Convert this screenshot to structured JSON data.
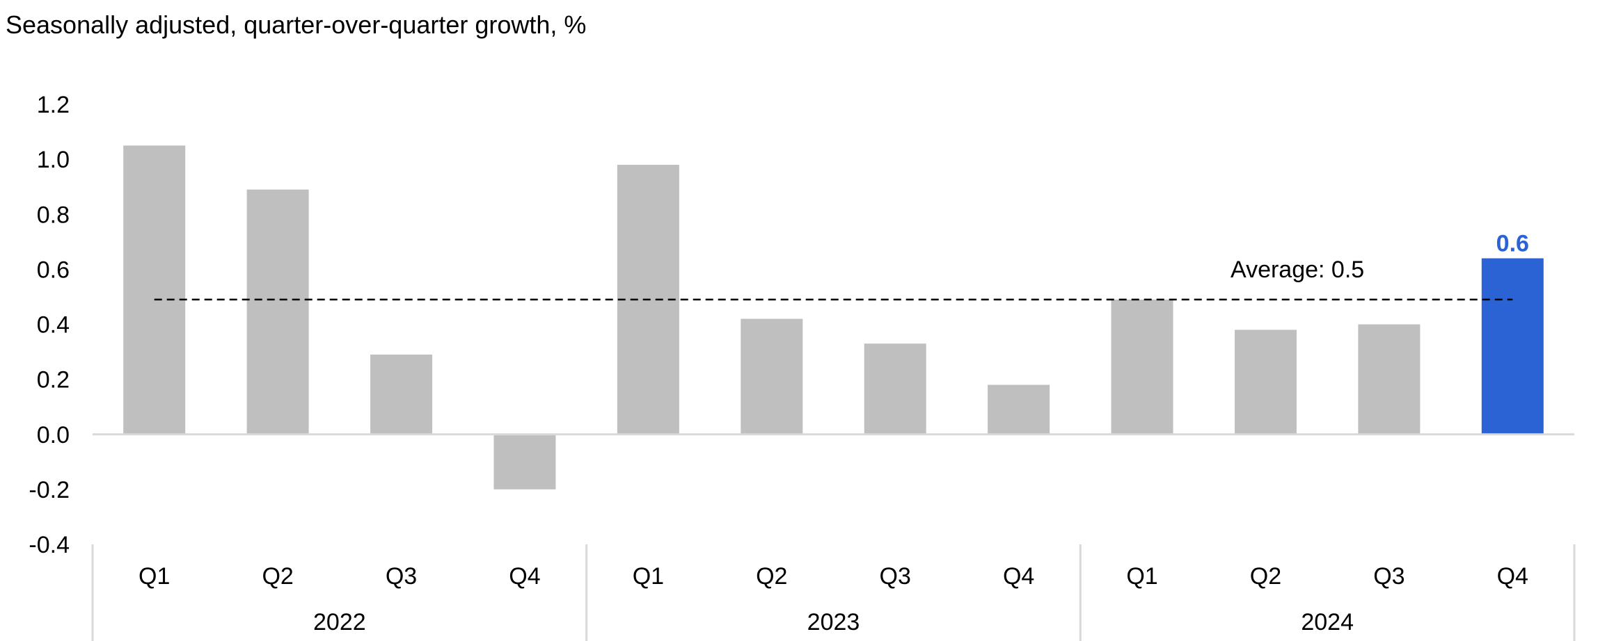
{
  "chart_data": {
    "type": "bar",
    "title": "Seasonally adjusted, quarter-over-quarter growth, %",
    "categories": [
      "Q1",
      "Q2",
      "Q3",
      "Q4",
      "Q1",
      "Q2",
      "Q3",
      "Q4",
      "Q1",
      "Q2",
      "Q3",
      "Q4"
    ],
    "groups": [
      {
        "label": "2022",
        "count": 4
      },
      {
        "label": "2023",
        "count": 4
      },
      {
        "label": "2024",
        "count": 4
      }
    ],
    "values": [
      1.05,
      0.89,
      0.29,
      -0.2,
      0.98,
      0.42,
      0.33,
      0.18,
      0.49,
      0.38,
      0.4,
      0.64
    ],
    "highlight_index": 11,
    "highlight_label": "0.6",
    "average": {
      "value": 0.49,
      "label": "Average: 0.5"
    },
    "ylim": [
      -0.4,
      1.2
    ],
    "yticks": [
      "1.2",
      "1.0",
      "0.8",
      "0.6",
      "0.4",
      "0.2",
      "0.0",
      "-0.2",
      "-0.4"
    ],
    "ytick_values": [
      1.2,
      1.0,
      0.8,
      0.6,
      0.4,
      0.2,
      0.0,
      -0.2,
      -0.4
    ],
    "grid": false,
    "legend": "none",
    "colors": {
      "bar": "#bfbfbf",
      "highlight": "#2b63d4",
      "axis": "#d9d9d9",
      "average_line": "#000000"
    }
  }
}
